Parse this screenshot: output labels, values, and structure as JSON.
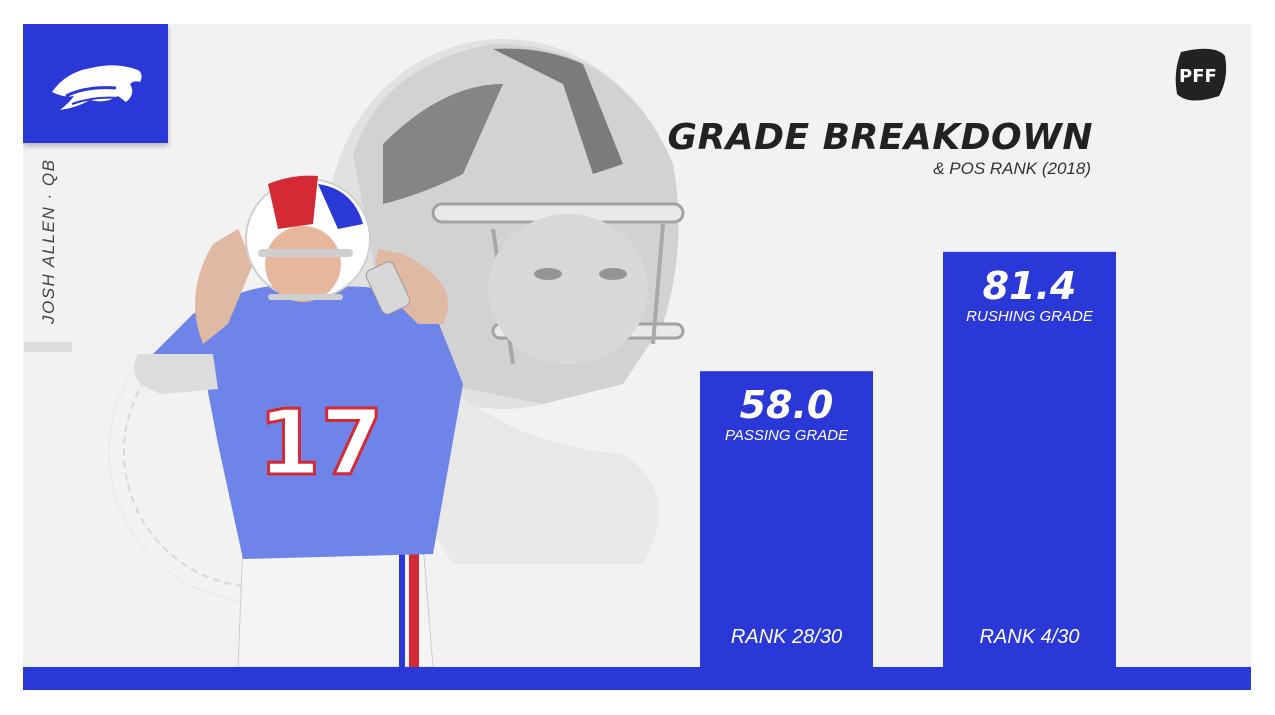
{
  "player": {
    "label": "JOSH ALLEN · QB"
  },
  "brand": {
    "logo_name": "PFF",
    "accent": "#2a38d8",
    "logo_icon": "buffalo-icon",
    "pff_icon": "football-icon"
  },
  "chart_data": {
    "type": "bar",
    "title": "GRADE BREAKDOWN",
    "subtitle": "& POS RANK (2018)",
    "categories": [
      "PASSING GRADE",
      "RUSHING GRADE"
    ],
    "values": [
      58.0,
      81.4
    ],
    "value_labels": [
      "58.0",
      "81.4"
    ],
    "ranks": [
      "RANK 28/30",
      "RANK 4/30"
    ],
    "ylim": [
      0,
      100
    ],
    "color": "#2a38d8",
    "grid": false,
    "legend": "none"
  }
}
